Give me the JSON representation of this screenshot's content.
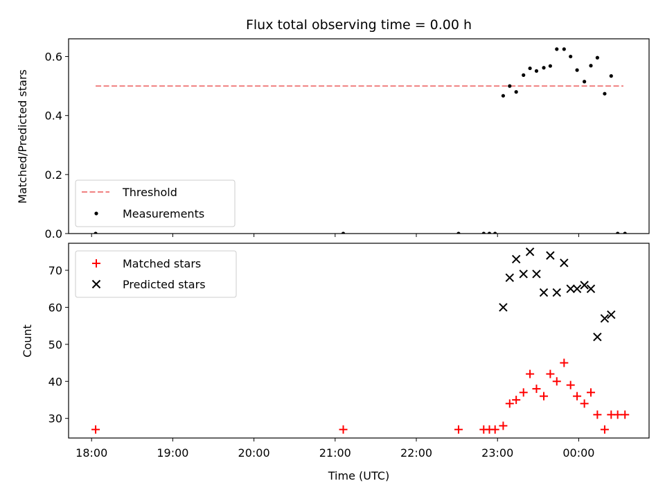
{
  "chart_data": [
    {
      "type": "scatter",
      "title": "Flux total observing time = 0.00 h",
      "xlabel": "",
      "ylabel": "Matched/Predicted stars",
      "xlim_hours": [
        17.7167,
        24.8667
      ],
      "ylim": [
        0,
        0.66
      ],
      "xticks": [
        18,
        19,
        20,
        21,
        22,
        23,
        24
      ],
      "yticks": [
        0.0,
        0.2,
        0.4,
        0.6
      ],
      "ytick_labels": [
        "0.0",
        "0.2",
        "0.4",
        "0.6"
      ],
      "legend": "lower-left",
      "threshold": {
        "name": "Threshold",
        "value": 0.5,
        "x_range": [
          18.05,
          24.55
        ],
        "color": "#f08080"
      },
      "measurements": {
        "name": "Measurements",
        "color": "#000000",
        "x": [
          18.05,
          21.1,
          22.52,
          22.83,
          22.9,
          22.97,
          23.07,
          23.15,
          23.23,
          23.32,
          23.4,
          23.48,
          23.57,
          23.65,
          23.73,
          23.82,
          23.9,
          23.98,
          24.07,
          24.15,
          24.23,
          24.32,
          24.4,
          24.48,
          24.57
        ],
        "y": [
          0.0,
          0.0,
          0.0,
          0.0,
          0.0,
          0.0,
          0.467,
          0.5,
          0.48,
          0.537,
          0.56,
          0.551,
          0.562,
          0.568,
          0.625,
          0.625,
          0.6,
          0.554,
          0.515,
          0.569,
          0.596,
          0.474,
          0.534,
          0.0,
          0.0
        ]
      }
    },
    {
      "type": "scatter",
      "title": "",
      "xlabel": "Time (UTC)",
      "ylabel": "Count",
      "xlim_hours": [
        17.7167,
        24.8667
      ],
      "ylim": [
        24.7,
        77.3
      ],
      "xticks": [
        18,
        19,
        20,
        21,
        22,
        23,
        24
      ],
      "xtick_labels": [
        "18:00",
        "19:00",
        "20:00",
        "21:00",
        "22:00",
        "23:00",
        "00:00"
      ],
      "yticks": [
        30,
        40,
        50,
        60,
        70
      ],
      "ytick_labels": [
        "30",
        "40",
        "50",
        "60",
        "70"
      ],
      "legend": "upper-left",
      "series": [
        {
          "name": "Matched stars",
          "marker": "plus",
          "color": "#ff0000",
          "x": [
            18.05,
            21.1,
            22.52,
            22.83,
            22.9,
            22.97,
            23.07,
            23.15,
            23.23,
            23.32,
            23.4,
            23.48,
            23.57,
            23.65,
            23.73,
            23.82,
            23.9,
            23.98,
            24.07,
            24.15,
            24.23,
            24.32,
            24.4,
            24.48,
            24.57
          ],
          "y": [
            27,
            27,
            27,
            27,
            27,
            27,
            28,
            34,
            35,
            37,
            42,
            38,
            36,
            42,
            40,
            45,
            39,
            36,
            34,
            37,
            31,
            27,
            31,
            31,
            31
          ]
        },
        {
          "name": "Predicted stars",
          "marker": "x",
          "color": "#000000",
          "x": [
            23.07,
            23.15,
            23.23,
            23.32,
            23.4,
            23.48,
            23.57,
            23.65,
            23.73,
            23.82,
            23.9,
            23.98,
            24.07,
            24.15,
            24.23,
            24.32,
            24.4
          ],
          "y": [
            60,
            68,
            73,
            69,
            75,
            69,
            64,
            74,
            64,
            72,
            65,
            65,
            66,
            65,
            52,
            57,
            58
          ]
        }
      ]
    }
  ]
}
